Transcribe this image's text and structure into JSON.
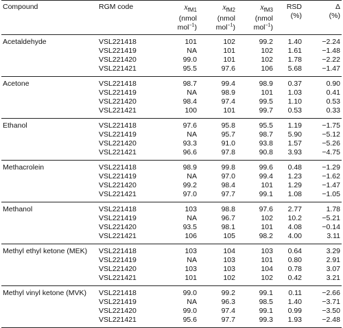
{
  "header": {
    "columns": [
      {
        "label": "Compound"
      },
      {
        "label": "RGM code"
      },
      {
        "symbol": "x",
        "sub": "fM1",
        "unit": [
          "(nmol mol",
          "−1",
          ")"
        ]
      },
      {
        "symbol": "x",
        "sub": "fM2",
        "unit": [
          "(nmol mol",
          "−1",
          ")"
        ]
      },
      {
        "symbol": "x",
        "sub": "fM3",
        "unit": [
          "(nmol mol",
          "−1",
          ")"
        ]
      },
      {
        "label": "RSD",
        "unit": [
          "(%)"
        ]
      },
      {
        "label": "Δ",
        "unit": [
          "(%)"
        ]
      }
    ]
  },
  "groups": [
    {
      "compound": "Acetaldehyde",
      "rows": [
        [
          "VSL221418",
          "101",
          "102",
          "99.2",
          "1.40",
          "−2.24"
        ],
        [
          "VSL221419",
          "NA",
          "101",
          "102",
          "1.61",
          "−1.48"
        ],
        [
          "VSL221420",
          "99.0",
          "101",
          "102",
          "1.78",
          "−2.22"
        ],
        [
          "VSL221421",
          "95.5",
          "97.6",
          "106",
          "5.68",
          "−1.47"
        ]
      ]
    },
    {
      "compound": "Acetone",
      "rows": [
        [
          "VSL221418",
          "98.7",
          "99.4",
          "98.9",
          "0.37",
          "0.90"
        ],
        [
          "VSL221419",
          "NA",
          "98.9",
          "101",
          "1.03",
          "0.41"
        ],
        [
          "VSL221420",
          "98.4",
          "97.4",
          "99.5",
          "1.10",
          "0.53"
        ],
        [
          "VSL221421",
          "100",
          "101",
          "99.7",
          "0.53",
          "0.33"
        ]
      ]
    },
    {
      "compound": "Ethanol",
      "rows": [
        [
          "VSL221418",
          "97.6",
          "95.8",
          "95.5",
          "1.19",
          "−1.75"
        ],
        [
          "VSL221419",
          "NA",
          "95.7",
          "98.7",
          "5.90",
          "−5.12"
        ],
        [
          "VSL221420",
          "93.3",
          "91.0",
          "93.8",
          "1.57",
          "−5.26"
        ],
        [
          "VSL221421",
          "96.6",
          "97.8",
          "90.8",
          "3.93",
          "−4.75"
        ]
      ]
    },
    {
      "compound": "Methacrolein",
      "rows": [
        [
          "VSL221418",
          "98.9",
          "99.8",
          "99.6",
          "0.48",
          "−1.29"
        ],
        [
          "VSL221419",
          "NA",
          "97.0",
          "99.4",
          "1.23",
          "−1.62"
        ],
        [
          "VSL221420",
          "99.2",
          "98.4",
          "101",
          "1.29",
          "−1.47"
        ],
        [
          "VSL221421",
          "97.0",
          "97.7",
          "99.1",
          "1.08",
          "−1.05"
        ]
      ]
    },
    {
      "compound": "Methanol",
      "rows": [
        [
          "VSL221418",
          "103",
          "98.8",
          "97.6",
          "2.77",
          "1.78"
        ],
        [
          "VSL221419",
          "NA",
          "96.7",
          "102",
          "10.2",
          "−5.21"
        ],
        [
          "VSL221420",
          "93.5",
          "98.1",
          "101",
          "4.08",
          "−0.14"
        ],
        [
          "VSL221421",
          "106",
          "105",
          "98.2",
          "4.00",
          "3.11"
        ]
      ]
    },
    {
      "compound": "Methyl ethyl ketone (MEK)",
      "rows": [
        [
          "VSL221418",
          "103",
          "104",
          "103",
          "0.64",
          "3.29"
        ],
        [
          "VSL221419",
          "NA",
          "103",
          "101",
          "0.80",
          "2.91"
        ],
        [
          "VSL221420",
          "103",
          "103",
          "104",
          "0.78",
          "3.07"
        ],
        [
          "VSL221421",
          "101",
          "102",
          "102",
          "0.42",
          "3.21"
        ]
      ]
    },
    {
      "compound": "Methyl vinyl ketone (MVK)",
      "rows": [
        [
          "VSL221418",
          "99.0",
          "99.2",
          "99.1",
          "0.11",
          "−2.66"
        ],
        [
          "VSL221419",
          "NA",
          "96.3",
          "98.5",
          "1.40",
          "−3.71"
        ],
        [
          "VSL221420",
          "99.0",
          "97.4",
          "99.1",
          "0.99",
          "−3.50"
        ],
        [
          "VSL221421",
          "95.6",
          "97.7",
          "99.3",
          "1.93",
          "−2.48"
        ]
      ]
    }
  ]
}
